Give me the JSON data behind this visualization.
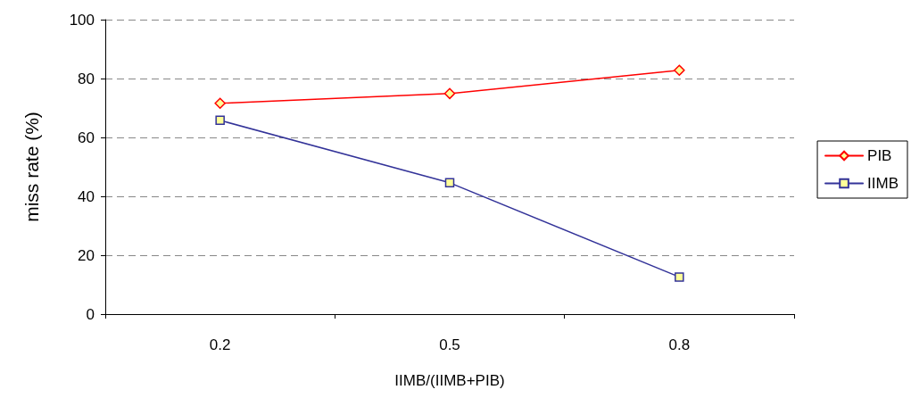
{
  "chart_data": {
    "type": "line",
    "xlabel": "IIMB/(IIMB+PIB)",
    "ylabel": "miss rate (%)",
    "categories": [
      "0.2",
      "0.5",
      "0.8"
    ],
    "series": [
      {
        "name": "PIB",
        "color": "#ff0000",
        "marker": "diamond",
        "values": [
          71.6,
          74.9,
          82.8
        ]
      },
      {
        "name": "IIMB",
        "color": "#333399",
        "marker": "square",
        "values": [
          65.8,
          44.6,
          12.6
        ]
      }
    ],
    "ylim": [
      0,
      100
    ],
    "yticks": [
      0,
      20,
      40,
      60,
      80,
      100
    ],
    "grid": "y",
    "legend": "right",
    "line_style": "solid"
  }
}
